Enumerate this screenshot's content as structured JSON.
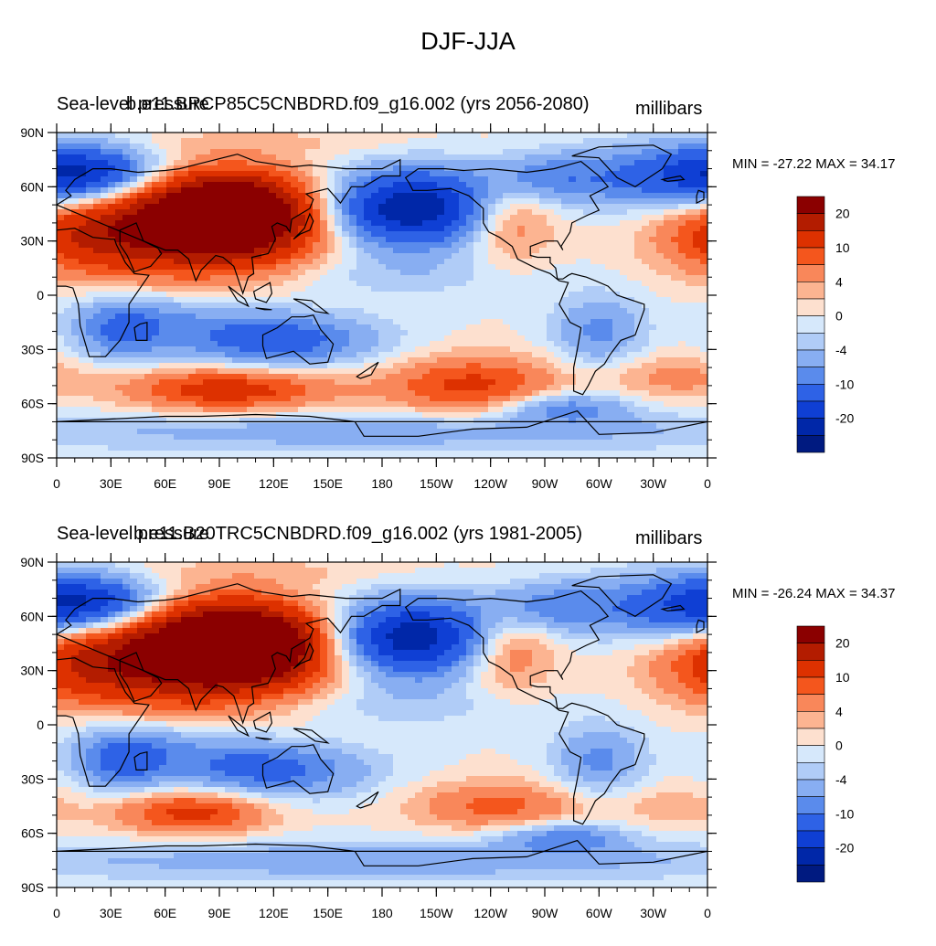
{
  "figure_title": "DJF-JJA",
  "panels": [
    {
      "left_label": "Sea-level pressure",
      "center_label": "b.e11.BRCP85C5CNBDRD.f09_g16.002 (yrs 2056-2080)",
      "right_label": "millibars",
      "min_max_text": "MIN = -27.22 MAX =  34.17"
    },
    {
      "left_label": "Sea-level pressure",
      "center_label": "b.e11.B20TRC5CNBDRD.f09_g16.002 (yrs 1981-2005)",
      "right_label": "millibars",
      "min_max_text": "MIN = -26.24 MAX =  34.37"
    }
  ],
  "lat_ticks": [
    "90N",
    "60N",
    "30N",
    "0",
    "30S",
    "60S",
    "90S"
  ],
  "lon_ticks": [
    "0",
    "30E",
    "60E",
    "90E",
    "120E",
    "150E",
    "180",
    "150W",
    "120W",
    "90W",
    "60W",
    "30W",
    "0"
  ],
  "colorbar": {
    "labels": [
      "20",
      "10",
      "4",
      "0",
      "-4",
      "-10",
      "-20"
    ],
    "colors": [
      "#8b0000",
      "#b31c00",
      "#dd3100",
      "#f4561d",
      "#f9875a",
      "#fcb491",
      "#fde0cf",
      "#d6e8fb",
      "#b0ccf7",
      "#88aef2",
      "#5a8bec",
      "#2e62e6",
      "#0f3fd4",
      "#0027a8",
      "#001a80"
    ]
  },
  "chart_data": {
    "type": "heatmap",
    "title": "DJF-JJA",
    "variable": "Sea-level pressure",
    "units": "millibars",
    "x_axis": {
      "range": [
        0,
        360
      ],
      "ticks": [
        "0",
        "30E",
        "60E",
        "90E",
        "120E",
        "150E",
        "180",
        "150W",
        "120W",
        "90W",
        "60W",
        "30W",
        "0"
      ]
    },
    "y_axis": {
      "range": [
        -90,
        90
      ],
      "ticks": [
        "90N",
        "60N",
        "30N",
        "0",
        "30S",
        "60S",
        "90S"
      ]
    },
    "contour_levels": [
      -25,
      -20,
      -15,
      -10,
      -7,
      -4,
      -2,
      0,
      2,
      4,
      7,
      10,
      15,
      20,
      25
    ],
    "series": [
      {
        "name": "b.e11.BRCP85C5CNBDRD.f09_g16.002 (yrs 2056-2080)",
        "min": -27.22,
        "max": 34.17,
        "centers": [
          {
            "lon": 95,
            "lat": 45,
            "value": 30,
            "sx": 33,
            "sy": 15
          },
          {
            "lon": 75,
            "lat": 35,
            "value": 13,
            "sx": 50,
            "sy": 22
          },
          {
            "lon": 15,
            "lat": 35,
            "value": 10,
            "sx": 30,
            "sy": 15
          },
          {
            "lon": 195,
            "lat": 47,
            "value": -26,
            "sx": 33,
            "sy": 15
          },
          {
            "lon": 250,
            "lat": 45,
            "value": 9,
            "sx": 18,
            "sy": 18
          },
          {
            "lon": 350,
            "lat": 65,
            "value": -15,
            "sx": 40,
            "sy": 13
          },
          {
            "lon": 265,
            "lat": 65,
            "value": -9,
            "sx": 25,
            "sy": 10
          },
          {
            "lon": 20,
            "lat": 68,
            "value": -12,
            "sx": 25,
            "sy": 10
          },
          {
            "lon": 120,
            "lat": -25,
            "value": -13,
            "sx": 40,
            "sy": 11
          },
          {
            "lon": 35,
            "lat": -20,
            "value": -9,
            "sx": 18,
            "sy": 12
          },
          {
            "lon": 300,
            "lat": -20,
            "value": -8,
            "sx": 18,
            "sy": 14
          },
          {
            "lon": 60,
            "lat": -10,
            "value": -5,
            "sx": 35,
            "sy": 10
          },
          {
            "lon": 95,
            "lat": -52,
            "value": 13,
            "sx": 40,
            "sy": 9
          },
          {
            "lon": 230,
            "lat": -50,
            "value": 11,
            "sx": 35,
            "sy": 12
          },
          {
            "lon": 340,
            "lat": -45,
            "value": 5,
            "sx": 25,
            "sy": 9
          },
          {
            "lon": 280,
            "lat": -62,
            "value": -9,
            "sx": 25,
            "sy": 6
          },
          {
            "lon": 180,
            "lat": 10,
            "value": -3,
            "sx": 60,
            "sy": 8
          },
          {
            "lon": 200,
            "lat": 35,
            "value": 2,
            "sx": 30,
            "sy": 8
          },
          {
            "lon": 180,
            "lat": -75,
            "value": -6,
            "sx": 120,
            "sy": 8
          },
          {
            "lon": 120,
            "lat": 85,
            "value": 2,
            "sx": 60,
            "sy": 5
          }
        ]
      },
      {
        "name": "b.e11.B20TRC5CNBDRD.f09_g16.002 (yrs 1981-2005)",
        "min": -26.24,
        "max": 34.37,
        "centers": [
          {
            "lon": 100,
            "lat": 45,
            "value": 31,
            "sx": 35,
            "sy": 15
          },
          {
            "lon": 75,
            "lat": 35,
            "value": 14,
            "sx": 50,
            "sy": 22
          },
          {
            "lon": 15,
            "lat": 35,
            "value": 10,
            "sx": 30,
            "sy": 15
          },
          {
            "lon": 195,
            "lat": 47,
            "value": -25,
            "sx": 32,
            "sy": 15
          },
          {
            "lon": 250,
            "lat": 45,
            "value": 9,
            "sx": 18,
            "sy": 18
          },
          {
            "lon": 350,
            "lat": 65,
            "value": -14,
            "sx": 40,
            "sy": 13
          },
          {
            "lon": 265,
            "lat": 65,
            "value": -9,
            "sx": 25,
            "sy": 10
          },
          {
            "lon": 20,
            "lat": 68,
            "value": -13,
            "sx": 25,
            "sy": 10
          },
          {
            "lon": 115,
            "lat": -25,
            "value": -12,
            "sx": 40,
            "sy": 11
          },
          {
            "lon": 35,
            "lat": -20,
            "value": -10,
            "sx": 18,
            "sy": 12
          },
          {
            "lon": 300,
            "lat": -20,
            "value": -8,
            "sx": 18,
            "sy": 14
          },
          {
            "lon": 60,
            "lat": -10,
            "value": -5,
            "sx": 35,
            "sy": 10
          },
          {
            "lon": 75,
            "lat": -48,
            "value": 12,
            "sx": 30,
            "sy": 9
          },
          {
            "lon": 245,
            "lat": -45,
            "value": 8,
            "sx": 35,
            "sy": 10
          },
          {
            "lon": 340,
            "lat": -45,
            "value": 3,
            "sx": 25,
            "sy": 9
          },
          {
            "lon": 280,
            "lat": -62,
            "value": -9,
            "sx": 25,
            "sy": 6
          },
          {
            "lon": 180,
            "lat": 10,
            "value": -3,
            "sx": 60,
            "sy": 8
          },
          {
            "lon": 200,
            "lat": 35,
            "value": 2,
            "sx": 30,
            "sy": 8
          },
          {
            "lon": 180,
            "lat": -75,
            "value": -6,
            "sx": 120,
            "sy": 8
          },
          {
            "lon": 120,
            "lat": 85,
            "value": 2,
            "sx": 60,
            "sy": 5
          }
        ]
      }
    ]
  }
}
